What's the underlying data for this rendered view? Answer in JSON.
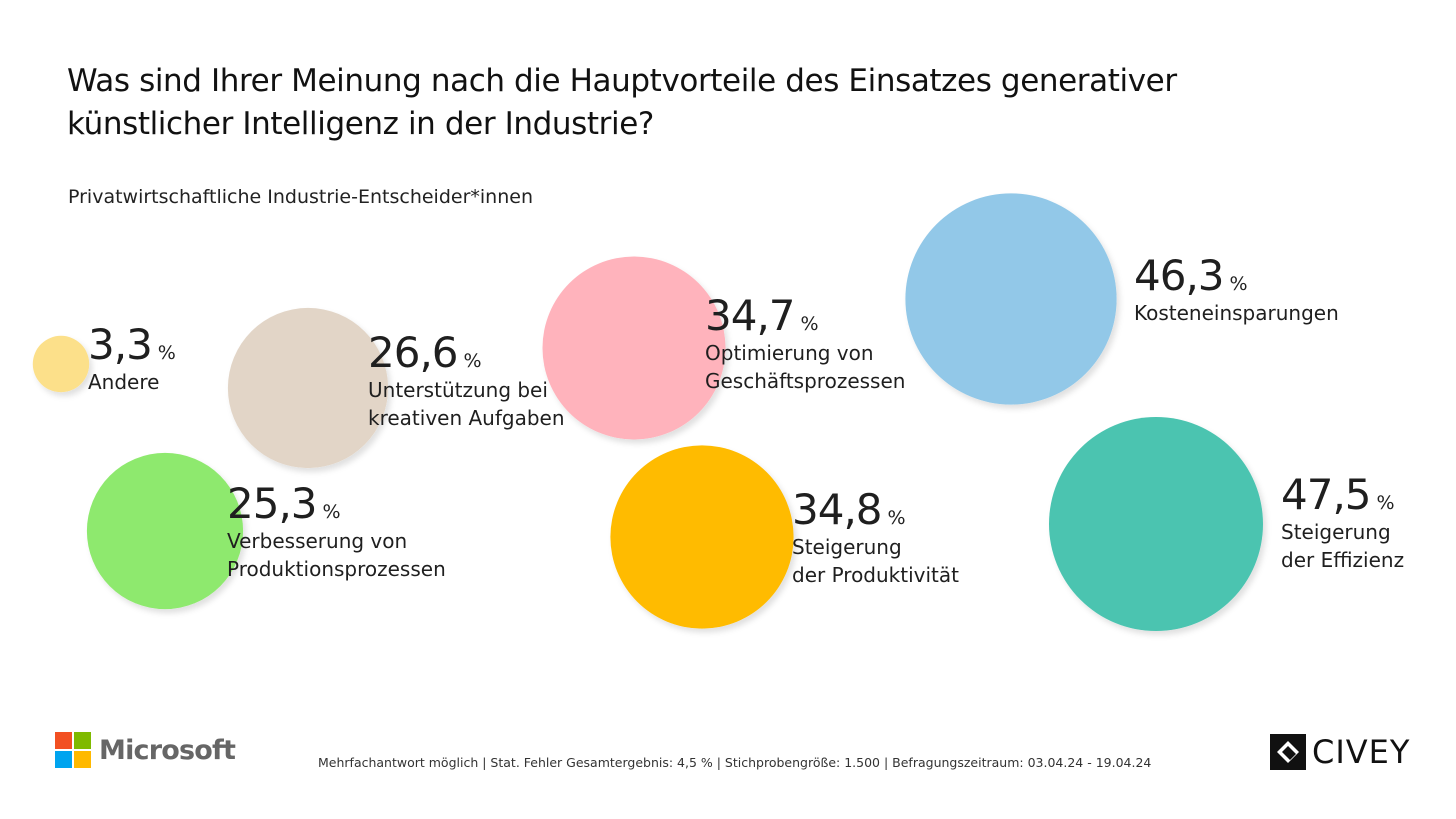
{
  "title_line1": "Was sind Ihrer Meinung nach die Hauptvorteile des Einsatzes generativer",
  "title_line2": "künstlicher Intelligenz in der Industrie?",
  "subtitle": "Privatwirtschaftliche Industrie-Entscheider*innen",
  "chart_data": {
    "type": "bubble",
    "unit": "%",
    "series": [
      {
        "category": "Andere",
        "value": 3.3,
        "value_label": "3,3",
        "color": "#FCE08A"
      },
      {
        "category": "Unterstützung bei kreativen Aufgaben",
        "value": 26.6,
        "value_label": "26,6",
        "color": "#E2D5C7"
      },
      {
        "category": "Optimierung von Geschäftsprozessen",
        "value": 34.7,
        "value_label": "34,7",
        "color": "#FFB3BC"
      },
      {
        "category": "Kosteneinsparungen",
        "value": 46.3,
        "value_label": "46,3",
        "color": "#92C8E8"
      },
      {
        "category": "Verbesserung von Produktionsprozessen",
        "value": 25.3,
        "value_label": "25,3",
        "color": "#8EE96E"
      },
      {
        "category": "Steigerung der Produktivität",
        "value": 34.8,
        "value_label": "34,8",
        "color": "#FFBB00"
      },
      {
        "category": "Steigerung der Effizienz",
        "value": 47.5,
        "value_label": "47,5",
        "color": "#4BC4B0"
      }
    ],
    "display_names": [
      "Andere",
      "Unterstützung bei\nkreativen Aufgaben",
      "Optimierung von\nGeschäftsprozessen",
      "Kosteneinsparungen",
      "Verbesserung von\nProduktionsprozessen",
      "Steigerung\nder Produktivität",
      "Steigerung\nder Effizienz"
    ]
  },
  "footer": {
    "note": "Mehrfachantwort möglich   |   Stat. Fehler Gesamtergebnis: 4,5 %   |   Stichprobengröße: 1.500   |   Befragungszeitraum: 03.04.24 - 19.04.24"
  },
  "logos": {
    "microsoft_text": "Microsoft",
    "microsoft_colors": [
      "#F25022",
      "#7FBA00",
      "#00A4EF",
      "#FFB900"
    ],
    "civey_text": "CIVEY"
  }
}
